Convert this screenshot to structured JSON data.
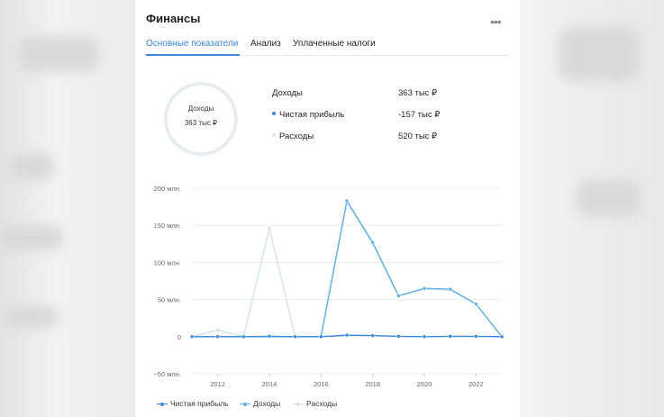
{
  "card": {
    "title": "Финансы",
    "more_label": "•••"
  },
  "tabs": [
    {
      "label": "Основные показатели",
      "active": true
    },
    {
      "label": "Анализ",
      "active": false
    },
    {
      "label": "Уплаченные налоги",
      "active": false
    }
  ],
  "donut": {
    "label": "Доходы",
    "value": "363 тыс ₽"
  },
  "summary": [
    {
      "label": "Доходы",
      "value": "363 тыс ₽",
      "marker_color": ""
    },
    {
      "label": "Чистая прибыль",
      "value": "-157 тыс ₽",
      "marker_color": "#3b87d6"
    },
    {
      "label": "Расходы",
      "value": "520 тыс ₽",
      "marker_color": "#dde7ef"
    }
  ],
  "colors": {
    "accent": "#3b87d6",
    "profit": "#3b87d6",
    "income": "#5fb0e0",
    "expense": "#d3e2ec"
  },
  "chart_data": {
    "type": "line",
    "x": [
      2011,
      2012,
      2013,
      2014,
      2015,
      2016,
      2017,
      2018,
      2019,
      2020,
      2021,
      2022,
      2023
    ],
    "ylim": [
      -50,
      200
    ],
    "yticks": [
      -50,
      0,
      50,
      100,
      150,
      200
    ],
    "ytick_labels": [
      "−50 млн.",
      "0",
      "50 млн.",
      "100 млн.",
      "150 млн.",
      "200 млн."
    ],
    "xticks": [
      2012,
      2014,
      2016,
      2018,
      2020,
      2022
    ],
    "xtick_labels": [
      "2012",
      "2014",
      "2016",
      "2018",
      "2020",
      "2022"
    ],
    "grid": true,
    "legend_position": "bottom-left",
    "series": [
      {
        "name": "Чистая прибыль",
        "color": "#3b87d6",
        "values": [
          0,
          0,
          0,
          0.5,
          0,
          0,
          2,
          1.5,
          0.5,
          0,
          0.5,
          0.5,
          0
        ]
      },
      {
        "name": "Доходы",
        "color": "#5fb0e0",
        "values": [
          0,
          0,
          0,
          0,
          0,
          0,
          183,
          127,
          55,
          65,
          64,
          44,
          0
        ]
      },
      {
        "name": "Расходы",
        "color": "#d3e2ec",
        "values": [
          0,
          9,
          0,
          146,
          0,
          0,
          181,
          125,
          55,
          64,
          63,
          44,
          0
        ]
      }
    ]
  }
}
